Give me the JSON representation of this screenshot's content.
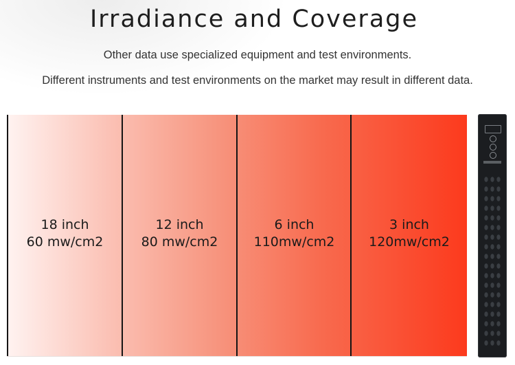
{
  "header": {
    "title": "Irradiance and Coverage",
    "subtitle_1": "Other data use specialized equipment and test environments.",
    "subtitle_2": "Different instruments and test environments on the market may result in different data."
  },
  "zones": [
    {
      "distance": "18 inch",
      "irradiance": "60 mw/cm2"
    },
    {
      "distance": "12 inch",
      "irradiance": "80 mw/cm2"
    },
    {
      "distance": "6 inch",
      "irradiance": "110mw/cm2"
    },
    {
      "distance": "3 inch",
      "irradiance": "120mw/cm2"
    }
  ],
  "colors": {
    "gradient_start": "#fff3f1",
    "gradient_end": "#fc3a1d",
    "device_body": "#1b1d20",
    "divider": "#141414"
  },
  "icons": [
    "device-display-icon",
    "power-button-icon",
    "mode-button-icon",
    "timer-button-icon"
  ]
}
